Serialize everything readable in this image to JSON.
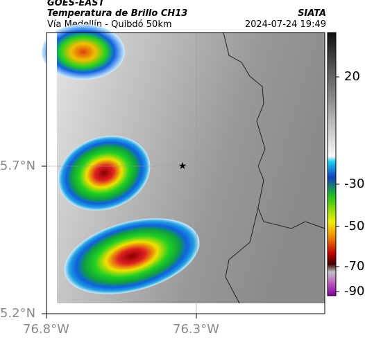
{
  "header": {
    "title": "GOES-EAST",
    "subtitle": "Temperatura de Brillo CH13",
    "region": "Vía Medellín - Quibdó 50km",
    "source": "SIATA",
    "datetime": "2024-07-24 19:49"
  },
  "axes": {
    "lat_labels": [
      "5.7°N",
      "5.2°N"
    ],
    "lon_labels": [
      "76.8°W",
      "76.3°W"
    ]
  },
  "colorbar": {
    "ticks": [
      20,
      -30,
      -50,
      -70,
      -90
    ]
  }
}
